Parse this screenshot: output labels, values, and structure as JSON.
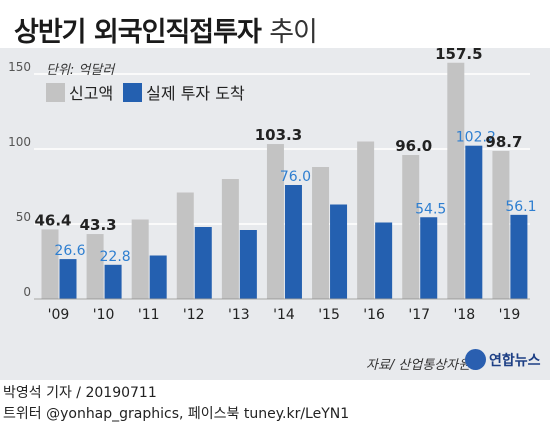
{
  "title": "상반기 외국인직접투자",
  "title_suffix": "추이",
  "unit": "단위: 억달러",
  "source": "자료/ 산업통상자원부",
  "logo": "연합뉴스",
  "credit_line1": "박영석 기자 / 20190711",
  "credit_line2": "트위터 @yonhap_graphics, 페이스북 tuney.kr/LeYN1",
  "colors": {
    "declared": "#c3c3c3",
    "arrived": "#2460b0",
    "arrived_label": "#2f7fd0",
    "declared_label": "#222222"
  },
  "chart_data": {
    "type": "bar",
    "categories": [
      "'09",
      "'10",
      "'11",
      "'12",
      "'13",
      "'14",
      "'15",
      "'16",
      "'17",
      "'18",
      "'19"
    ],
    "series": [
      {
        "name": "신고액",
        "values": [
          46.4,
          43.3,
          53,
          71,
          80,
          103.3,
          88,
          105,
          96.0,
          157.5,
          98.7
        ]
      },
      {
        "name": "실제 투자 도착",
        "values": [
          26.6,
          22.8,
          29,
          48,
          46,
          76.0,
          63,
          51,
          54.5,
          102.2,
          56.1
        ]
      }
    ],
    "declared_labels": [
      "46.4",
      "43.3",
      "",
      "",
      "",
      "103.3",
      "",
      "",
      "96.0",
      "157.5",
      "98.7"
    ],
    "arrived_labels": [
      "26.6",
      "22.8",
      "",
      "",
      "",
      "76.0",
      "",
      "",
      "54.5",
      "102.2",
      "56.1"
    ],
    "y_ticks": [
      "0",
      "50",
      "100",
      "150"
    ],
    "ylim": [
      0,
      160
    ],
    "grid": true,
    "legend": "top-left"
  }
}
